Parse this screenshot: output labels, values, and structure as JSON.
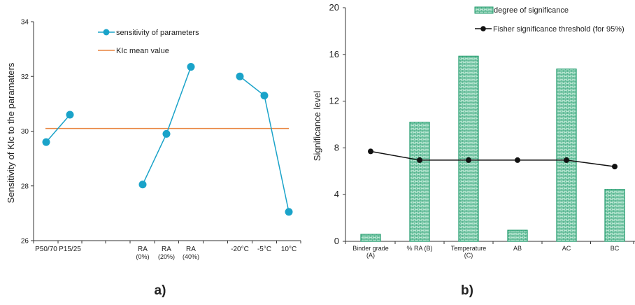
{
  "colors": {
    "sensitivity": "#1aa3c9",
    "mean": "#e8843f",
    "bar_fill": "#b8e6d2",
    "bar_stroke": "#1f9a6b",
    "threshold": "#111111",
    "axis": "#333333"
  },
  "chart_data": [
    {
      "type": "line",
      "panel_label": "a)",
      "ylabel": "Sensitivity of KIc to the paramaters",
      "ylim": [
        26,
        34
      ],
      "yticks": [
        "26",
        "28",
        "30",
        "32",
        "34"
      ],
      "categories": [
        {
          "label": "P50/70"
        },
        {
          "label": "P15/25"
        },
        {
          "label": ""
        },
        {
          "label": ""
        },
        {
          "label": "RA",
          "sub": "(0%)"
        },
        {
          "label": "RA",
          "sub": "(20%)"
        },
        {
          "label": "RA",
          "sub": "(40%)"
        },
        {
          "label": ""
        },
        {
          "label": "-20°C"
        },
        {
          "label": "-5°C"
        },
        {
          "label": "10°C"
        }
      ],
      "series": [
        {
          "name": "sensitivity of parameters",
          "groups": [
            [
              [
                0,
                29.6
              ],
              [
                1,
                30.6
              ]
            ],
            [
              [
                4,
                28.05
              ],
              [
                5,
                29.9
              ],
              [
                6,
                32.35
              ]
            ],
            [
              [
                8,
                32.0
              ],
              [
                9,
                31.3
              ],
              [
                10,
                27.05
              ]
            ]
          ]
        },
        {
          "name": "KIc mean value",
          "value": 30.1
        }
      ],
      "legend": "top-center",
      "grid": false
    },
    {
      "type": "bar",
      "panel_label": "b)",
      "ylabel": "Significance level",
      "ylim": [
        0,
        20
      ],
      "yticks": [
        "0",
        "4",
        "8",
        "12",
        "16",
        "20"
      ],
      "categories": [
        {
          "label": "Binder grade",
          "sub": "(A)"
        },
        {
          "label": "% RA (B)"
        },
        {
          "label": "Temperature",
          "sub": "(C)"
        },
        {
          "label": "AB"
        },
        {
          "label": "AC"
        },
        {
          "label": "BC"
        }
      ],
      "series": [
        {
          "name": "degree of significance",
          "values": [
            0.6,
            10.2,
            15.85,
            0.95,
            14.75,
            4.45
          ]
        },
        {
          "name": "Fisher significance threshold (for 95%)",
          "values": [
            7.7,
            6.95,
            6.95,
            6.95,
            6.95,
            6.4
          ]
        }
      ],
      "legend": "top-right",
      "grid": false
    }
  ]
}
